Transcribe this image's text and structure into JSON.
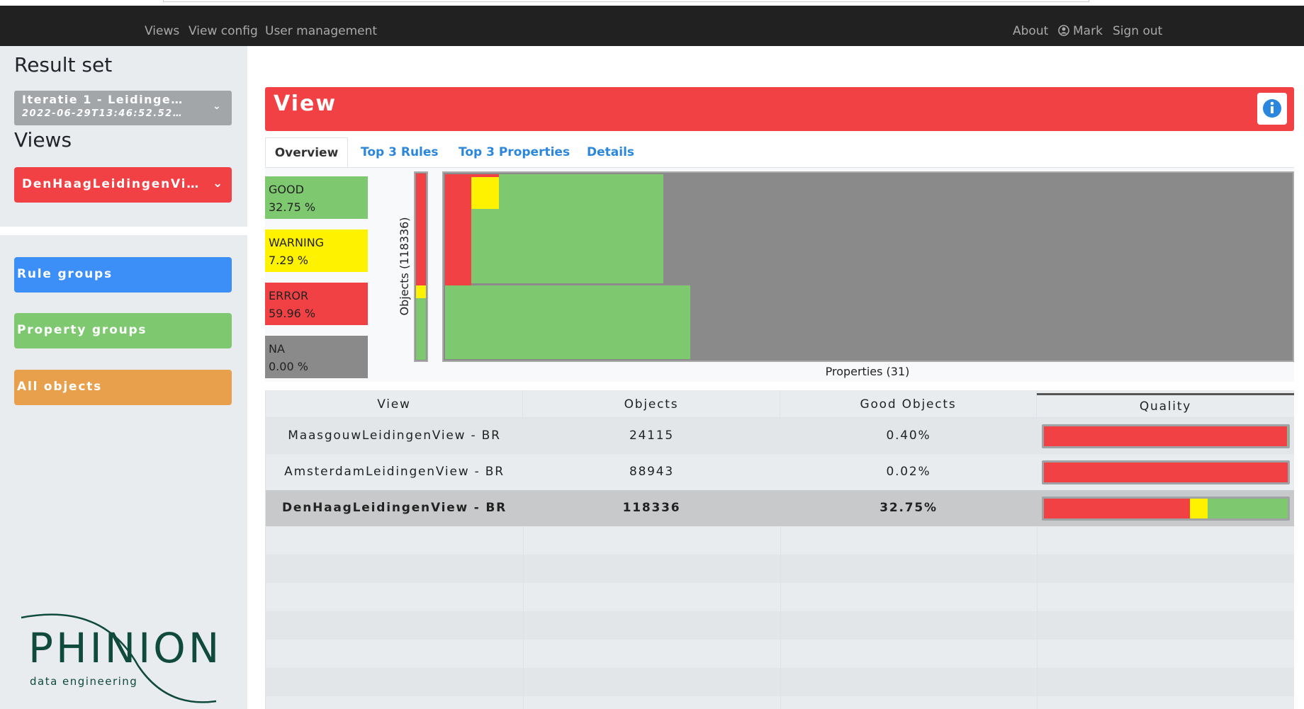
{
  "navbar": {
    "links": [
      "Views",
      "View config",
      "User management"
    ],
    "right": [
      "About",
      "Mark",
      "Sign out"
    ]
  },
  "sidebar": {
    "result_set": {
      "heading": "Result set",
      "selected_name": "Iteratie 1 - Leidinge…",
      "selected_date": "2022-06-29T13:46:52.52…"
    },
    "views": {
      "heading": "Views",
      "selected": "DenHaagLeidingenVi…"
    },
    "buttons": [
      "Rule groups",
      "Property groups",
      "All objects"
    ],
    "logo": {
      "name": "PHINION",
      "tagline": "data engineering"
    }
  },
  "main": {
    "title": "View",
    "tabs": [
      "Overview",
      "Top 3 Rules",
      "Top 3 Properties",
      "Details"
    ],
    "legend": [
      {
        "label": "GOOD",
        "value": "32.75 %"
      },
      {
        "label": "WARNING",
        "value": "7.29 %"
      },
      {
        "label": "ERROR",
        "value": "59.96 %"
      },
      {
        "label": "NA",
        "value": "0.00 %"
      }
    ],
    "y_axis_label": "Objects (118336)",
    "x_axis_label": "Properties (31)",
    "table": {
      "columns": [
        "View",
        "Objects",
        "Good Objects",
        "Quality"
      ],
      "rows": [
        {
          "view": "MaasgouwLeidingenView - BR",
          "objects": 24115,
          "good": "0.40%",
          "quality": [
            99.6,
            0,
            0.4
          ]
        },
        {
          "view": "AmsterdamLeidingenView - BR",
          "objects": 88943,
          "good": "0.02%",
          "quality": [
            99.98,
            0,
            0.02
          ]
        },
        {
          "view": "DenHaagLeidingenView - BR",
          "objects": 118336,
          "good": "32.75%",
          "quality": [
            59.96,
            7.29,
            32.75
          ]
        }
      ]
    }
  }
}
